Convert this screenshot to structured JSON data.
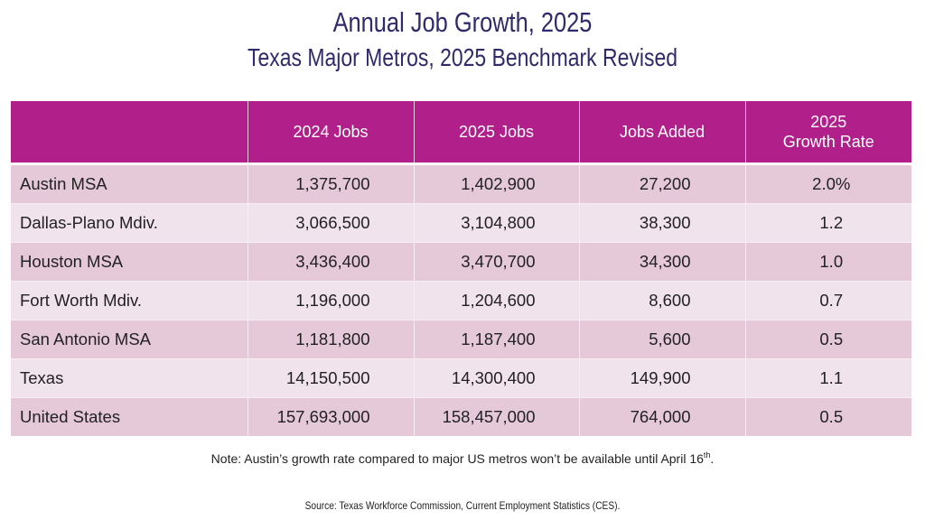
{
  "title": "Annual Job Growth, 2025",
  "subtitle": "Texas Major Metros, 2025 Benchmark Revised",
  "colors": {
    "header_bg": "#b01f8a",
    "row_dark": "#e5c9d9",
    "row_light": "#f1e3ec",
    "title_color": "#2e2a6b"
  },
  "table": {
    "headers": [
      "",
      "2024 Jobs",
      "2025 Jobs",
      "Jobs Added",
      "2025",
      "Growth Rate"
    ],
    "header_cells": {
      "area": "",
      "jobs_2024": "2024 Jobs",
      "jobs_2025": "2025 Jobs",
      "jobs_added": "Jobs Added",
      "growth_rate_line1": "2025",
      "growth_rate_line2": "Growth Rate"
    },
    "rows": [
      {
        "area": "Austin MSA",
        "jobs_2024": "1,375,700",
        "jobs_2025": "1,402,900",
        "jobs_added": "27,200",
        "growth_rate": "2.0%"
      },
      {
        "area": "Dallas-Plano Mdiv.",
        "jobs_2024": "3,066,500",
        "jobs_2025": "3,104,800",
        "jobs_added": "38,300",
        "growth_rate": "1.2"
      },
      {
        "area": "Houston MSA",
        "jobs_2024": "3,436,400",
        "jobs_2025": "3,470,700",
        "jobs_added": "34,300",
        "growth_rate": "1.0"
      },
      {
        "area": "Fort Worth Mdiv.",
        "jobs_2024": "1,196,000",
        "jobs_2025": "1,204,600",
        "jobs_added": "8,600",
        "growth_rate": "0.7"
      },
      {
        "area": "San Antonio MSA",
        "jobs_2024": "1,181,800",
        "jobs_2025": "1,187,400",
        "jobs_added": "5,600",
        "growth_rate": "0.5"
      },
      {
        "area": "Texas",
        "jobs_2024": "14,150,500",
        "jobs_2025": "14,300,400",
        "jobs_added": "149,900",
        "growth_rate": "1.1"
      },
      {
        "area": "United States",
        "jobs_2024": "157,693,000",
        "jobs_2025": "158,457,000",
        "jobs_added": "764,000",
        "growth_rate": "0.5"
      }
    ]
  },
  "note": {
    "text": "Note: Austin’s growth rate compared to major US metros won’t be available until April 16",
    "superscript": "th",
    "end": "."
  },
  "source": "Source: Texas Workforce Commission, Current Employment Statistics (CES)."
}
